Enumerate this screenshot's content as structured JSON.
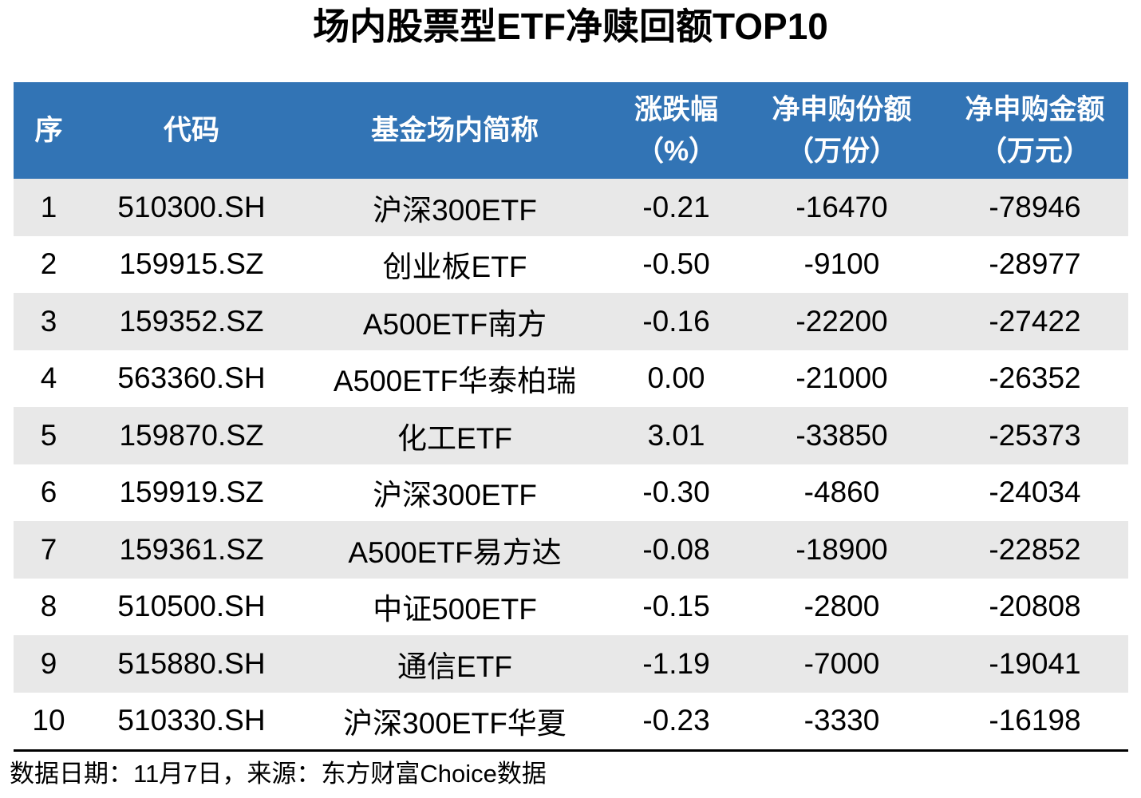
{
  "title": "场内股票型ETF净赎回额TOP10",
  "colors": {
    "header_bg": "#3274B5",
    "header_text": "#FFFFFF",
    "stripe_bg": "#E8E8E8",
    "body_text": "#000000",
    "bottom_rule": "#000000"
  },
  "table": {
    "headers": [
      {
        "line1": "序",
        "line2": ""
      },
      {
        "line1": "代码",
        "line2": ""
      },
      {
        "line1": "基金场内简称",
        "line2": ""
      },
      {
        "line1": "涨跌幅",
        "line2": "（%）"
      },
      {
        "line1": "净申购份额",
        "line2": "（万份）"
      },
      {
        "line1": "净申购金额",
        "line2": "（万元）"
      }
    ],
    "rows": [
      [
        "1",
        "510300.SH",
        "沪深300ETF",
        "-0.21",
        "-16470",
        "-78946"
      ],
      [
        "2",
        "159915.SZ",
        "创业板ETF",
        "-0.50",
        "-9100",
        "-28977"
      ],
      [
        "3",
        "159352.SZ",
        "A500ETF南方",
        "-0.16",
        "-22200",
        "-27422"
      ],
      [
        "4",
        "563360.SH",
        "A500ETF华泰柏瑞",
        "0.00",
        "-21000",
        "-26352"
      ],
      [
        "5",
        "159870.SZ",
        "化工ETF",
        "3.01",
        "-33850",
        "-25373"
      ],
      [
        "6",
        "159919.SZ",
        "沪深300ETF",
        "-0.30",
        "-4860",
        "-24034"
      ],
      [
        "7",
        "159361.SZ",
        "A500ETF易方达",
        "-0.08",
        "-18900",
        "-22852"
      ],
      [
        "8",
        "510500.SH",
        "中证500ETF",
        "-0.15",
        "-2800",
        "-20808"
      ],
      [
        "9",
        "515880.SH",
        "通信ETF",
        "-1.19",
        "-7000",
        "-19041"
      ],
      [
        "10",
        "510330.SH",
        "沪深300ETF华夏",
        "-0.23",
        "-3330",
        "-16198"
      ]
    ]
  },
  "footer": {
    "text": "数据日期：11月7日，来源：东方财富Choice数据"
  },
  "chart_data": {
    "type": "table",
    "title": "场内股票型ETF净赎回额TOP10",
    "columns": [
      "序",
      "代码",
      "基金场内简称",
      "涨跌幅（%）",
      "净申购份额（万份）",
      "净申购金额（万元）"
    ],
    "rows": [
      [
        1,
        "510300.SH",
        "沪深300ETF",
        -0.21,
        -16470,
        -78946
      ],
      [
        2,
        "159915.SZ",
        "创业板ETF",
        -0.5,
        -9100,
        -28977
      ],
      [
        3,
        "159352.SZ",
        "A500ETF南方",
        -0.16,
        -22200,
        -27422
      ],
      [
        4,
        "563360.SH",
        "A500ETF华泰柏瑞",
        0.0,
        -21000,
        -26352
      ],
      [
        5,
        "159870.SZ",
        "化工ETF",
        3.01,
        -33850,
        -25373
      ],
      [
        6,
        "159919.SZ",
        "沪深300ETF",
        -0.3,
        -4860,
        -24034
      ],
      [
        7,
        "159361.SZ",
        "A500ETF易方达",
        -0.08,
        -18900,
        -22852
      ],
      [
        8,
        "510500.SH",
        "中证500ETF",
        -0.15,
        -2800,
        -20808
      ],
      [
        9,
        "515880.SH",
        "通信ETF",
        -1.19,
        -7000,
        -19041
      ],
      [
        10,
        "510330.SH",
        "沪深300ETF华夏",
        -0.23,
        -3330,
        -16198
      ]
    ],
    "source_note": "数据日期：11月7日，来源：东方财富Choice数据"
  }
}
